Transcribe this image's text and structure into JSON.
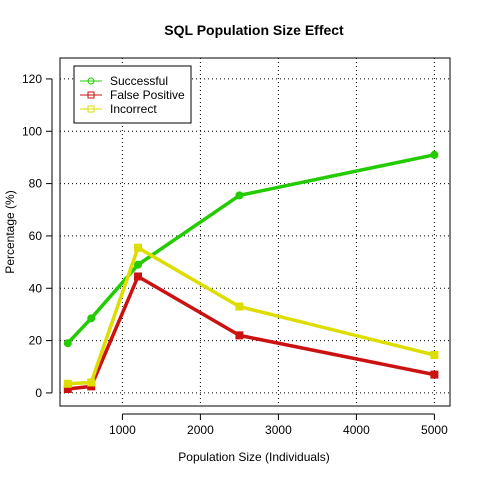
{
  "chart_data": {
    "type": "line",
    "title": "SQL Population Size Effect",
    "xlabel": "Population Size (Individuals)",
    "ylabel": "Percentage (%)",
    "xlim": [
      200,
      5200
    ],
    "ylim": [
      -5,
      128
    ],
    "x_ticks": [
      1000,
      2000,
      3000,
      4000,
      5000
    ],
    "y_ticks": [
      0,
      20,
      40,
      60,
      80,
      100,
      120
    ],
    "x": [
      300,
      600,
      1200,
      2500,
      5000
    ],
    "grid": true,
    "legend_position": "top-left",
    "series": [
      {
        "name": "Successful",
        "color": "#22cc00",
        "marker": "circle",
        "values": [
          19,
          28.5,
          49,
          75.5,
          91
        ]
      },
      {
        "name": "False Positive",
        "color": "#cc1111",
        "marker": "square",
        "values": [
          1.5,
          2.5,
          44.5,
          22,
          7
        ]
      },
      {
        "name": "Incorrect",
        "color": "#dddd00",
        "marker": "square",
        "values": [
          3.5,
          4,
          55.5,
          33,
          14.5
        ]
      }
    ]
  }
}
